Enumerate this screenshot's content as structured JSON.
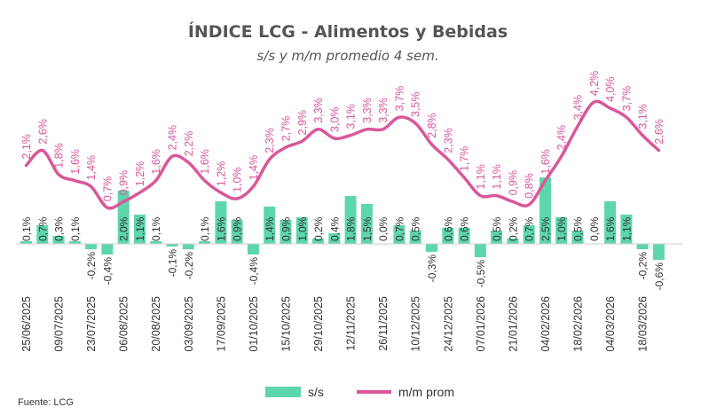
{
  "chart_data": {
    "type": "bar+line",
    "title": "ÍNDICE LCG - Alimentos y Bebidas",
    "subtitle": "s/s y m/m promedio 4 sem.",
    "source": "Fuente: LCG",
    "colors": {
      "bars": "#5ed6ab",
      "line": "#d9579a"
    },
    "legend": {
      "position": "bottom",
      "bar_label": "s/s",
      "line_label": "m/m prom"
    },
    "x_tick_labels": [
      "25/06/2025",
      "09/07/2025",
      "23/07/2025",
      "06/08/2025",
      "20/08/2025",
      "03/09/2025",
      "17/09/2025",
      "01/10/2025",
      "15/10/2025",
      "29/10/2025",
      "12/11/2025",
      "26/11/2025",
      "10/12/2025",
      "24/12/2025",
      "07/01/2026",
      "21/01/2026",
      "04/02/2026",
      "18/02/2026",
      "04/03/2026",
      "18/03/2026"
    ],
    "series": [
      {
        "name": "s/s",
        "type": "bar",
        "values": [
          0.1,
          0.7,
          0.3,
          0.1,
          -0.2,
          -0.4,
          2.0,
          1.1,
          0.1,
          -0.1,
          -0.2,
          0.1,
          1.6,
          0.9,
          -0.4,
          1.4,
          0.9,
          1.0,
          0.2,
          0.4,
          1.8,
          1.5,
          0.0,
          0.7,
          0.5,
          -0.3,
          0.6,
          0.6,
          -0.5,
          0.5,
          0.2,
          0.7,
          2.5,
          1.0,
          0.5,
          0.0,
          1.6,
          1.1,
          -0.2,
          -0.6
        ],
        "labels": [
          "0,1%",
          "0,7%",
          "0,3%",
          "0,1%",
          "-0,2%",
          "-0,4%",
          "2,0%",
          "1,1%",
          "0,1%",
          "-0,1%",
          "-0,2%",
          "0,1%",
          "1,6%",
          "0,9%",
          "-0,4%",
          "1,4%",
          "0,9%",
          "1,0%",
          "0,2%",
          "0,4%",
          "1,8%",
          "1,5%",
          "0,0%",
          "0,7%",
          "0,5%",
          "-0,3%",
          "0,6%",
          "0,6%",
          "-0,5%",
          "0,5%",
          "0,2%",
          "0,7%",
          "2,5%",
          "1,0%",
          "0,5%",
          "0,0%",
          "1,6%",
          "1,1%",
          "-0,2%",
          "-0,6%"
        ]
      },
      {
        "name": "m/m prom",
        "type": "line",
        "values": [
          2.1,
          2.6,
          1.8,
          1.6,
          1.4,
          0.7,
          0.9,
          1.2,
          1.6,
          2.4,
          2.2,
          1.6,
          1.2,
          1.0,
          1.4,
          2.3,
          2.7,
          2.9,
          3.3,
          3.0,
          3.1,
          3.3,
          3.3,
          3.7,
          3.5,
          2.8,
          2.3,
          1.7,
          1.1,
          1.1,
          0.9,
          0.8,
          1.6,
          2.4,
          3.4,
          4.2,
          4.0,
          3.7,
          3.1,
          2.6
        ],
        "labels": [
          "2,1%",
          "2,6%",
          "1,8%",
          "1,6%",
          "1,4%",
          "0,7%",
          "0,9%",
          "1,2%",
          "1,6%",
          "2,4%",
          "2,2%",
          "1,6%",
          "1,2%",
          "1,0%",
          "1,4%",
          "2,3%",
          "2,7%",
          "2,9%",
          "3,3%",
          "3,0%",
          "3,1%",
          "3,3%",
          "3,3%",
          "3,7%",
          "3,5%",
          "2,8%",
          "2,3%",
          "1,7%",
          "1,1%",
          "1,1%",
          "0,9%",
          "0,8%",
          "1,6%",
          "2,4%",
          "3,4%",
          "4,2%",
          "4,0%",
          "3,7%",
          "3,1%",
          "2,6%"
        ]
      }
    ]
  }
}
